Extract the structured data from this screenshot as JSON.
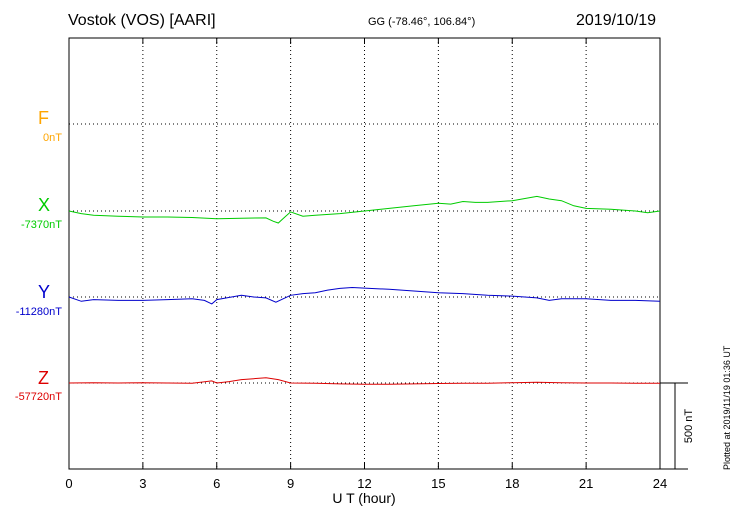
{
  "header": {
    "station": "Vostok (VOS)  [AARI]",
    "coords": "GG (-78.46°, 106.84°)",
    "date": "2019/10/19"
  },
  "plotted_note": "Plotted at 2019/11/19 01:36 UT",
  "components": [
    {
      "label": "F",
      "baseline": "0nT",
      "color": "#ffa500"
    },
    {
      "label": "X",
      "baseline": "-7370nT",
      "color": "#00cc00"
    },
    {
      "label": "Y",
      "baseline": "-11280nT",
      "color": "#0000cc"
    },
    {
      "label": "Z",
      "baseline": "-57720nT",
      "color": "#dd0000"
    }
  ],
  "chart_data": {
    "type": "line",
    "xlabel": "U T (hour)",
    "xlim": [
      0,
      24
    ],
    "xticks": [
      0,
      3,
      6,
      9,
      12,
      15,
      18,
      21,
      24
    ],
    "scale_bar": "500 nT",
    "grid": true,
    "series": [
      {
        "name": "X",
        "color": "#00cc00",
        "baseline": -7370,
        "x": [
          0,
          0.5,
          1,
          2,
          3,
          4,
          5,
          6,
          7,
          8,
          8.3,
          8.5,
          8.8,
          9,
          9.5,
          10,
          11,
          12,
          13,
          14,
          15,
          15.5,
          16,
          16.5,
          17,
          18,
          18.8,
          19,
          19.5,
          20,
          20.5,
          21,
          22,
          23,
          23.5,
          24
        ],
        "y": [
          -7370,
          -7385,
          -7395,
          -7400,
          -7405,
          -7405,
          -7408,
          -7415,
          -7412,
          -7410,
          -7430,
          -7440,
          -7400,
          -7375,
          -7400,
          -7395,
          -7385,
          -7370,
          -7355,
          -7340,
          -7325,
          -7330,
          -7315,
          -7320,
          -7320,
          -7310,
          -7290,
          -7285,
          -7300,
          -7310,
          -7340,
          -7355,
          -7360,
          -7370,
          -7380,
          -7370
        ]
      },
      {
        "name": "Y",
        "color": "#0000cc",
        "baseline": -11280,
        "x": [
          0,
          0.5,
          1,
          2,
          3,
          4,
          5,
          5.5,
          5.8,
          6,
          7,
          7.5,
          8,
          8.4,
          9,
          9.5,
          10,
          10.5,
          11,
          11.5,
          12,
          13,
          14,
          15,
          16,
          17,
          18,
          19,
          19.5,
          20,
          21,
          22,
          23,
          24
        ],
        "y": [
          -11280,
          -11305,
          -11295,
          -11300,
          -11300,
          -11295,
          -11290,
          -11300,
          -11320,
          -11295,
          -11270,
          -11280,
          -11285,
          -11310,
          -11270,
          -11260,
          -11255,
          -11240,
          -11230,
          -11225,
          -11228,
          -11235,
          -11245,
          -11255,
          -11260,
          -11270,
          -11275,
          -11285,
          -11300,
          -11290,
          -11290,
          -11300,
          -11300,
          -11305
        ]
      },
      {
        "name": "Z",
        "color": "#dd0000",
        "baseline": -57720,
        "x": [
          0,
          1,
          2,
          3,
          4,
          5,
          5.8,
          6,
          6.5,
          7,
          7.5,
          8,
          8.5,
          9,
          10,
          11,
          12,
          13,
          14,
          15,
          16,
          17,
          18,
          19,
          20,
          21,
          22,
          23,
          24
        ],
        "y": [
          -57720,
          -57718,
          -57720,
          -57718,
          -57720,
          -57722,
          -57708,
          -57720,
          -57712,
          -57700,
          -57695,
          -57690,
          -57700,
          -57720,
          -57722,
          -57725,
          -57727,
          -57727,
          -57725,
          -57723,
          -57722,
          -57722,
          -57718,
          -57716,
          -57718,
          -57720,
          -57720,
          -57722,
          -57722
        ]
      }
    ]
  }
}
